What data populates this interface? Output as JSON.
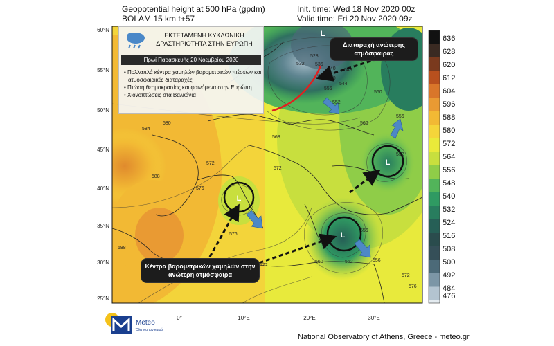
{
  "header": {
    "title_line1": "Geopotential height at 500 hPa (gpdm)",
    "title_line2": "BOLAM 15 km t+57",
    "init_time": "Init. time: Wed 18 Nov 2020 00z",
    "valid_time": "Valid time: Fri 20 Nov 2020 09z"
  },
  "map": {
    "lat_labels": [
      "60°N",
      "55°N",
      "50°N",
      "45°N",
      "40°N",
      "35°N",
      "30°N",
      "25°N"
    ],
    "lon_labels": [
      "0°",
      "10°E",
      "20°E",
      "30°E"
    ],
    "contour_labels": [
      "584",
      "580",
      "588",
      "572",
      "576",
      "576",
      "584",
      "588",
      "572",
      "564",
      "560",
      "556",
      "552",
      "548",
      "544",
      "540",
      "536",
      "532",
      "528",
      "560",
      "560",
      "556",
      "552",
      "556",
      "560",
      "552",
      "556",
      "572",
      "576",
      "568",
      "572"
    ],
    "low_labels": [
      "L",
      "L",
      "L",
      "L"
    ],
    "colors": {
      "high": "#d98a2b",
      "mid": "#f2e233",
      "low": "#2f8f5a",
      "deep_low": "#1e4a45",
      "front": "#e02020",
      "arrow": "#4d88c6"
    }
  },
  "colorbar": {
    "values": [
      "636",
      "628",
      "620",
      "612",
      "604",
      "596",
      "588",
      "580",
      "572",
      "564",
      "556",
      "548",
      "540",
      "532",
      "524",
      "516",
      "508",
      "500",
      "492",
      "484",
      "476"
    ],
    "colors": [
      "#111111",
      "#3a2a22",
      "#7a3a1e",
      "#b8501e",
      "#d9762a",
      "#e99a33",
      "#f2b934",
      "#f5d53a",
      "#eaea3a",
      "#c8df3e",
      "#8fcd48",
      "#52b45a",
      "#2f9a62",
      "#287d5e",
      "#265f56",
      "#2a4c4d",
      "#354f58",
      "#4c6a78",
      "#7c96a6",
      "#b3c4d0",
      "#e4ebf0"
    ]
  },
  "infobox": {
    "title": "ΕΚΤΕΤΑΜΕΝΗ ΚΥΚΛΩΝΙΚΗ ΔΡΑΣΤΗΡΙΟΤΗΤΑ ΣΤΗΝ ΕΥΡΩΠΗ",
    "date_banner": "Πρωί Παρασκευής 20 Νοεμβρίου 2020",
    "bullets": [
      "Πολλαπλά κέντρα χαμηλών βαρομετρικών πιέσεων και ατμοσφαιρικές διαταραχές",
      "Πτώση θερμοκρασίας και φαινόμενα στην Ευρώπη",
      "Χιονοπτώσεις στα Βαλκάνια"
    ]
  },
  "callouts": {
    "upper_disturbance": "Διαταραχή ανώτερης ατμόσφαιρας",
    "low_centers": "Κέντρα βαρομετρικών χαμηλών στην ανώτερη ατμόσφαιρα"
  },
  "logo": {
    "name": "Meteo",
    "tagline": "Όλα για τον καιρό"
  },
  "footer": "National Observatory of Athens, Greece - meteo.gr"
}
